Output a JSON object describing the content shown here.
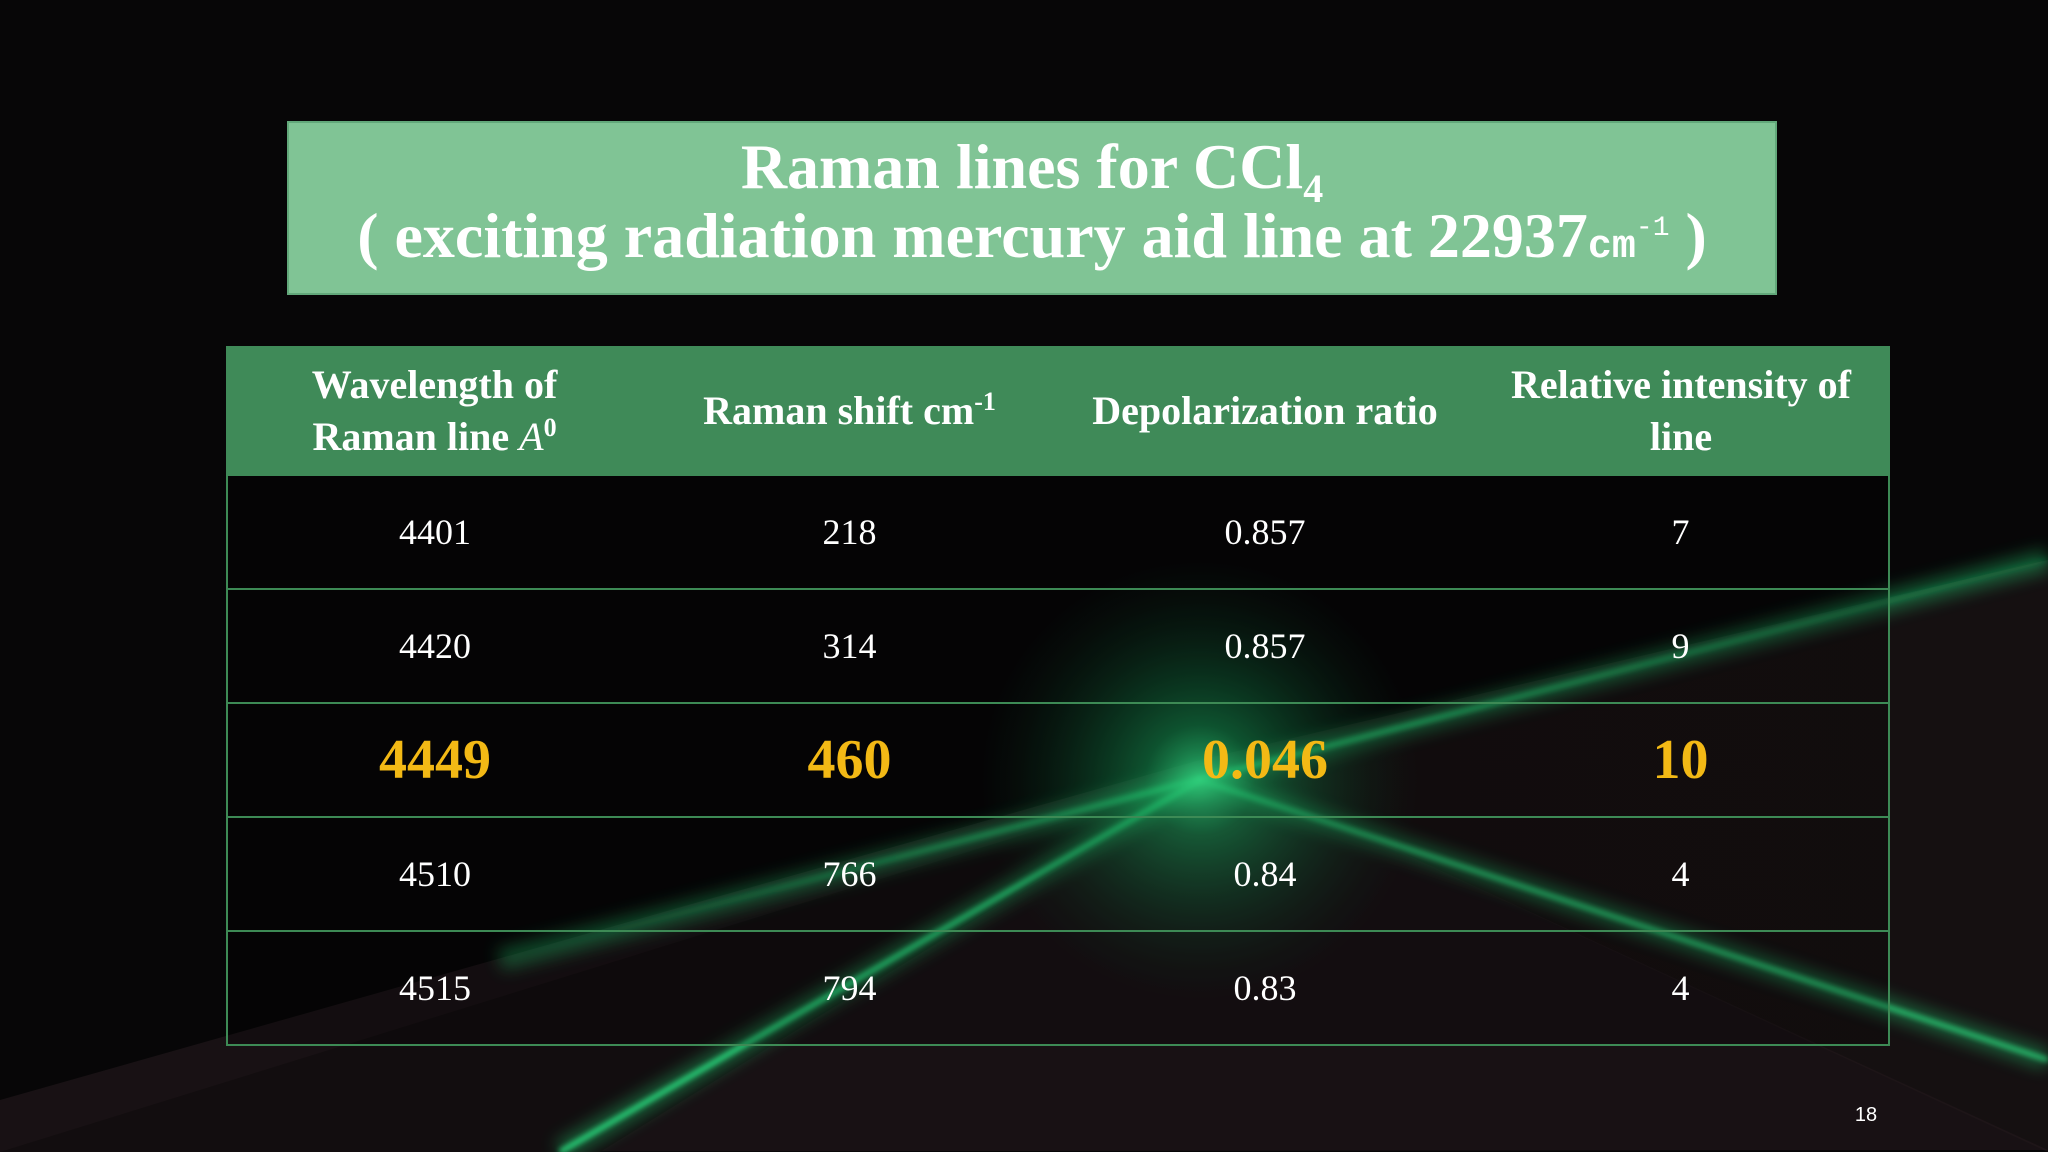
{
  "slide": {
    "title": {
      "line1_text": "Raman lines for CCl",
      "line1_subscript": "4",
      "line2_prefix": "( exciting radiation mercury aid line at 22937",
      "line2_unit": "cm",
      "line2_superscript": "-1",
      "line2_suffix": " )"
    },
    "table": {
      "headers": [
        {
          "line1": "Wavelength of",
          "line2": "Raman line ",
          "symbol": "A",
          "symbol_sup": "0"
        },
        {
          "text": "Raman shift cm",
          "sup": "-1"
        },
        {
          "text": "Depolarization ratio"
        },
        {
          "line1": "Relative intensity of",
          "line2": "line"
        }
      ],
      "rows": [
        [
          "4401",
          "218",
          "0.857",
          "7"
        ],
        [
          "4420",
          "314",
          "0.857",
          "9"
        ],
        [
          "4449",
          "460",
          "0.046",
          "10"
        ],
        [
          "4510",
          "766",
          "0.84",
          "4"
        ],
        [
          "4515",
          "794",
          "0.83",
          "4"
        ]
      ],
      "highlighted_row": 2
    },
    "page_number": "18",
    "colors": {
      "title_background": "#80c495",
      "header_background": "#3f8a58",
      "highlight_text": "#f3b915",
      "background": "#070607"
    }
  }
}
